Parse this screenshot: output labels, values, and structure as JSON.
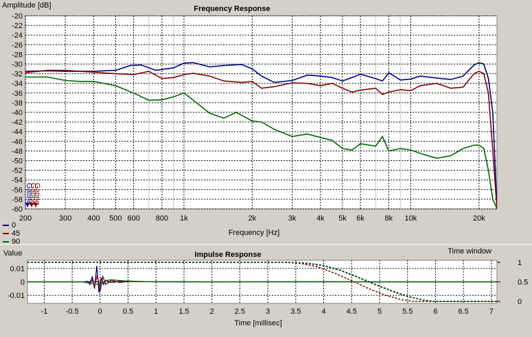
{
  "chart_data": [
    {
      "type": "line",
      "title": "Frequency Response",
      "ylabel": "Amplitude [dB]",
      "xlabel": "Frequency [Hz]",
      "xscale": "log",
      "xlim": [
        200,
        24000
      ],
      "ylim": [
        -60,
        -20
      ],
      "grid": true,
      "x_ticks": [
        200,
        300,
        400,
        500,
        600,
        800,
        1000,
        2000,
        3000,
        4000,
        5000,
        6000,
        8000,
        10000,
        20000
      ],
      "x_tick_labels": [
        "200",
        "300",
        "400",
        "500",
        "600",
        "800",
        "1k",
        "2k",
        "3k",
        "4k",
        "5k",
        "6k",
        "8k",
        "10k",
        "20k"
      ],
      "y_ticks": [
        -20,
        -22,
        -24,
        -26,
        -28,
        -30,
        -32,
        -34,
        -36,
        -38,
        -40,
        -42,
        -44,
        -46,
        -48,
        -50,
        -52,
        -54,
        -56,
        -58,
        -60
      ],
      "legend_placement": "bottom-left",
      "side_markers": [
        "Gating",
        "Gating",
        "Gating"
      ],
      "series": [
        {
          "name": "0",
          "color": "#000080",
          "x": [
            200,
            250,
            300,
            400,
            500,
            580,
            650,
            750,
            900,
            1000,
            1100,
            1300,
            1500,
            1800,
            2000,
            2200,
            2500,
            3000,
            3500,
            4000,
            4500,
            5000,
            5500,
            6000,
            7000,
            7500,
            8000,
            9000,
            10000,
            11000,
            13000,
            15000,
            17000,
            19000,
            20000,
            21000,
            22000,
            23000,
            23500,
            24000
          ],
          "y": [
            -31.5,
            -31.4,
            -31.5,
            -31.5,
            -31.3,
            -30.3,
            -30.2,
            -31.3,
            -30.8,
            -29.8,
            -29.7,
            -30.6,
            -30.3,
            -30.1,
            -31.0,
            -32.5,
            -33.8,
            -33.4,
            -32.3,
            -32.5,
            -32.8,
            -33.5,
            -32.8,
            -32.1,
            -33.0,
            -33.5,
            -31.8,
            -33.3,
            -33.1,
            -32.5,
            -32.9,
            -33.2,
            -32.5,
            -30.2,
            -29.7,
            -30.0,
            -33.0,
            -40.0,
            -50.0,
            -60.0
          ]
        },
        {
          "name": "45",
          "color": "#800000",
          "x": [
            200,
            250,
            300,
            400,
            500,
            600,
            700,
            800,
            900,
            1000,
            1100,
            1300,
            1500,
            1800,
            2000,
            2200,
            2500,
            3000,
            3500,
            4000,
            4500,
            5000,
            5500,
            6000,
            7000,
            7500,
            8000,
            9000,
            10000,
            11000,
            13000,
            15000,
            17000,
            19000,
            20000,
            21000,
            22000,
            23000,
            24000
          ],
          "y": [
            -31.8,
            -31.3,
            -31.3,
            -31.7,
            -32.0,
            -32.2,
            -31.5,
            -33.0,
            -32.8,
            -32.2,
            -31.9,
            -32.5,
            -33.5,
            -33.8,
            -33.6,
            -35.0,
            -34.7,
            -33.9,
            -34.0,
            -34.5,
            -34.0,
            -35.0,
            -35.8,
            -35.4,
            -35.0,
            -36.3,
            -35.8,
            -35.3,
            -35.5,
            -34.5,
            -34.0,
            -35.0,
            -34.8,
            -32.0,
            -31.5,
            -32.0,
            -36.0,
            -48.0,
            -60.0
          ]
        },
        {
          "name": "90",
          "color": "#006400",
          "x": [
            200,
            250,
            300,
            350,
            400,
            500,
            600,
            700,
            800,
            900,
            1000,
            1100,
            1300,
            1500,
            1700,
            2000,
            2200,
            2500,
            3000,
            3500,
            4000,
            4500,
            5000,
            5500,
            6000,
            7000,
            7500,
            8000,
            9000,
            10000,
            11000,
            13000,
            15000,
            17000,
            19000,
            20000,
            21000,
            22000,
            23000,
            24000
          ],
          "y": [
            -32.7,
            -32.7,
            -33.4,
            -33.6,
            -33.6,
            -34.5,
            -36.0,
            -37.5,
            -37.4,
            -36.8,
            -36.0,
            -37.5,
            -40.2,
            -41.2,
            -40.0,
            -41.8,
            -42.0,
            -43.5,
            -45.0,
            -44.5,
            -45.2,
            -45.8,
            -47.5,
            -47.8,
            -46.5,
            -47.0,
            -45.0,
            -48.0,
            -47.5,
            -47.8,
            -48.5,
            -49.5,
            -49.0,
            -47.5,
            -46.8,
            -46.8,
            -47.5,
            -52.0,
            -58.0,
            -60.0
          ]
        }
      ]
    },
    {
      "type": "line",
      "title": "Impulse Response",
      "ylabel": "Value",
      "ylabel_right": "Time window",
      "xlabel": "Time [millisec]",
      "xlim": [
        -1.3,
        7.1
      ],
      "ylim": [
        -0.016,
        0.016
      ],
      "ylim_right": [
        0,
        1
      ],
      "grid": true,
      "x_ticks": [
        -1,
        -0.5,
        0,
        0.5,
        1,
        1.5,
        2,
        2.5,
        3,
        3.5,
        4,
        4.5,
        5,
        5.5,
        6,
        6.5,
        7
      ],
      "x_tick_labels": [
        "-1",
        "-0.5",
        "0",
        "0.5",
        "1",
        "1.5",
        "2",
        "2.5",
        "3",
        "3.5",
        "4",
        "4.5",
        "5",
        "5.5",
        "6",
        "6.5",
        "7"
      ],
      "y_ticks": [
        0.01,
        0,
        -0.01
      ],
      "y_tick_labels": [
        "0.01",
        "0",
        "-0.01"
      ],
      "y_ticks_right": [
        1,
        0.5,
        0
      ],
      "y_tick_labels_right": [
        "1",
        "0.5",
        "0"
      ],
      "series": [
        {
          "name": "0",
          "color": "#000080",
          "x": [
            -1.3,
            -0.3,
            -0.22,
            -0.18,
            -0.14,
            -0.1,
            -0.06,
            -0.02,
            0.02,
            0.06,
            0.1,
            0.2,
            0.35,
            0.5,
            0.8,
            1.2,
            2,
            4,
            5,
            6,
            7.1
          ],
          "y": [
            0,
            0,
            0.0005,
            -0.002,
            0.004,
            -0.005,
            0.012,
            -0.008,
            0.003,
            -0.002,
            0.001,
            -0.0005,
            0.0004,
            0.0006,
            0.0002,
            0.0001,
            0,
            0.0001,
            0,
            0,
            0
          ]
        },
        {
          "name": "45",
          "color": "#800000",
          "x": [
            -1.3,
            -0.3,
            -0.2,
            -0.15,
            -0.1,
            -0.05,
            0,
            0.05,
            0.1,
            0.2,
            0.35,
            0.5,
            1,
            2,
            7.1
          ],
          "y": [
            0,
            0,
            -0.001,
            0.002,
            -0.003,
            0.005,
            -0.007,
            0.004,
            -0.002,
            0.001,
            -0.0005,
            0.0003,
            0,
            0,
            0
          ]
        },
        {
          "name": "90",
          "color": "#006400",
          "x": [
            -1.3,
            -0.3,
            -0.2,
            -0.1,
            0,
            0.1,
            0.2,
            0.35,
            0.5,
            1,
            2,
            7.1
          ],
          "y": [
            0,
            0,
            -0.0008,
            -0.0015,
            -0.002,
            0.001,
            0.0015,
            0.001,
            0.0005,
            0,
            0,
            0
          ]
        }
      ],
      "window_series": [
        {
          "name": "0",
          "color": "#000080",
          "x": [
            -1.3,
            3.4,
            3.7,
            4.0,
            4.3,
            4.6,
            4.9,
            5.2,
            5.5,
            5.8,
            6.0,
            7.1
          ],
          "y": [
            1,
            1,
            0.98,
            0.92,
            0.8,
            0.63,
            0.45,
            0.28,
            0.13,
            0.03,
            0,
            0
          ]
        },
        {
          "name": "45",
          "color": "#800000",
          "x": [
            -1.3,
            3.3,
            3.6,
            3.9,
            4.2,
            4.5,
            4.8,
            5.1,
            5.4,
            5.6,
            7.1
          ],
          "y": [
            1,
            1,
            0.97,
            0.88,
            0.72,
            0.53,
            0.33,
            0.16,
            0.04,
            0,
            0
          ]
        },
        {
          "name": "90",
          "color": "#006400",
          "x": [
            -1.3,
            3.4,
            3.7,
            4.0,
            4.3,
            4.6,
            4.9,
            5.2,
            5.5,
            5.8,
            6.0,
            7.1
          ],
          "y": [
            1,
            1,
            0.97,
            0.91,
            0.79,
            0.62,
            0.44,
            0.27,
            0.12,
            0.03,
            0,
            0
          ]
        }
      ]
    }
  ]
}
